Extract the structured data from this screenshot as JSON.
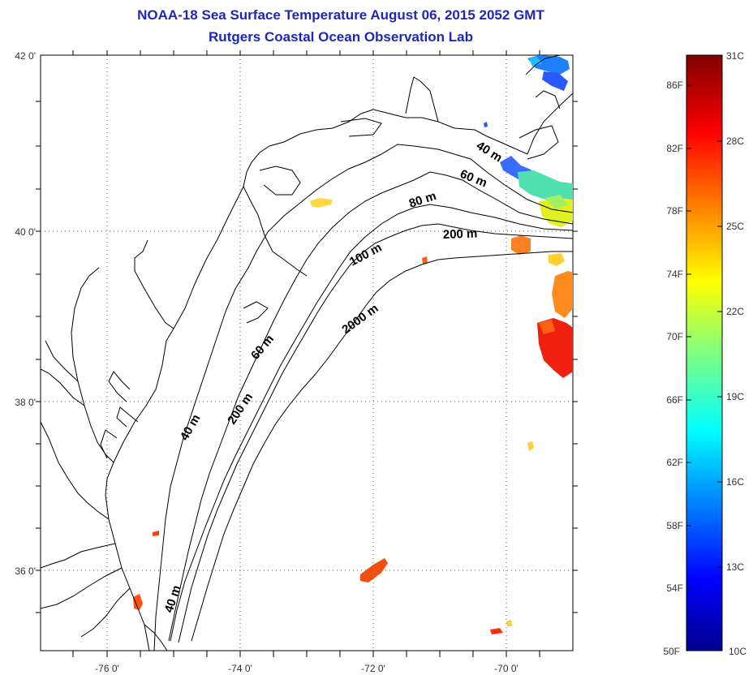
{
  "header": {
    "title": "NOAA-18 Sea Surface Temperature August 06, 2015 2052 GMT",
    "subtitle": "Rutgers Coastal Ocean Observation Lab"
  },
  "map": {
    "lat_labels": [
      "42 0'",
      "40 0'",
      "38 0'",
      "36 0'"
    ],
    "lon_labels": [
      "-76 0'",
      "-74 0'",
      "-72 0'",
      "-70 0'"
    ],
    "isobath_labels": [
      "40 m",
      "60 m",
      "80 m",
      "100 m",
      "200 m",
      "2000 m",
      "60 m",
      "40 m",
      "200 m",
      "40 m"
    ],
    "colors": {
      "coastline": "#000000",
      "grid": "#555555"
    }
  },
  "colorbar": {
    "fahrenheit_labels": [
      "86F",
      "82F",
      "78F",
      "74F",
      "70F",
      "66F",
      "62F",
      "58F",
      "54F",
      "50F"
    ],
    "celsius_labels": [
      "31C",
      "28C",
      "25C",
      "22C",
      "19C",
      "16C",
      "13C",
      "10C"
    ],
    "min_c": 10,
    "max_c": 31
  }
}
